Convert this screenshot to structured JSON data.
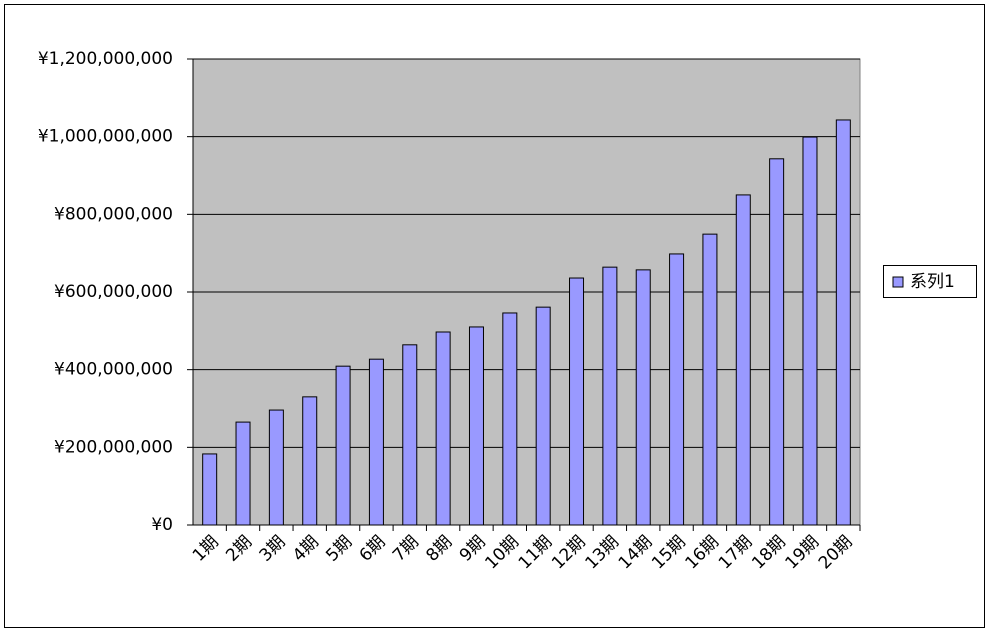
{
  "chart_data": {
    "type": "bar",
    "categories": [
      "1期",
      "2期",
      "3期",
      "4期",
      "5期",
      "6期",
      "7期",
      "8期",
      "9期",
      "10期",
      "11期",
      "12期",
      "13期",
      "14期",
      "15期",
      "16期",
      "17期",
      "18期",
      "19期",
      "20期"
    ],
    "series": [
      {
        "name": "系列1",
        "color": "#9999ff",
        "values": [
          183000000,
          265000000,
          296000000,
          330000000,
          409000000,
          427000000,
          464000000,
          497000000,
          510000000,
          546000000,
          561000000,
          636000000,
          664000000,
          657000000,
          698000000,
          749000000,
          850000000,
          943000000,
          999000000,
          1043000000
        ]
      }
    ],
    "ylim": [
      0,
      1200000000
    ],
    "yticks": [
      {
        "value": 0,
        "label": "¥0"
      },
      {
        "value": 200000000,
        "label": "¥200,000,000"
      },
      {
        "value": 400000000,
        "label": "¥400,000,000"
      },
      {
        "value": 600000000,
        "label": "¥600,000,000"
      },
      {
        "value": 800000000,
        "label": "¥800,000,000"
      },
      {
        "value": 1000000000,
        "label": "¥1,000,000,000"
      },
      {
        "value": 1200000000,
        "label": "¥1,200,000,000"
      }
    ],
    "grid": true,
    "legend": "right"
  }
}
